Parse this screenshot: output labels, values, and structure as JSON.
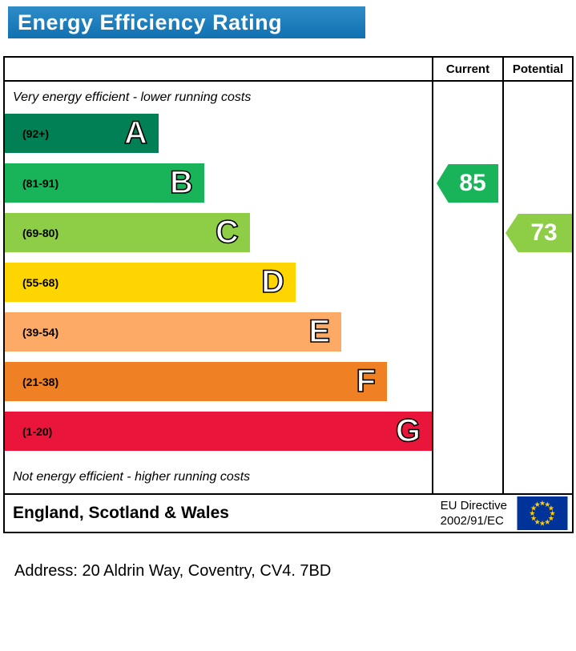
{
  "title": "Energy Efficiency Rating",
  "colors": {
    "title_bar_top": "#2e8cc8",
    "title_bar_bottom": "#1171b1"
  },
  "table": {
    "current_header": "Current",
    "potential_header": "Potential"
  },
  "notes": {
    "top": "Very energy efficient - lower running costs",
    "bottom": "Not energy efficient - higher running costs"
  },
  "chart_data": {
    "type": "bar",
    "title": "Energy Efficiency Rating",
    "orientation": "horizontal",
    "bands": [
      {
        "letter": "A",
        "range": "(92+)",
        "color": "#008054",
        "width_pct": 36.0
      },
      {
        "letter": "B",
        "range": "(81-91)",
        "color": "#19b459",
        "width_pct": 46.7
      },
      {
        "letter": "C",
        "range": "(69-80)",
        "color": "#8dce46",
        "width_pct": 57.4
      },
      {
        "letter": "D",
        "range": "(55-68)",
        "color": "#ffd500",
        "width_pct": 68.1
      },
      {
        "letter": "E",
        "range": "(39-54)",
        "color": "#fcaa65",
        "width_pct": 78.8
      },
      {
        "letter": "F",
        "range": "(21-38)",
        "color": "#ef8023",
        "width_pct": 89.5
      },
      {
        "letter": "G",
        "range": "(1-20)",
        "color": "#e9153b",
        "width_pct": 100.0
      }
    ],
    "current": {
      "label": "Current",
      "value": 85,
      "band": "B",
      "color": "#19b459"
    },
    "potential": {
      "label": "Potential",
      "value": 73,
      "band": "C",
      "color": "#8dce46"
    }
  },
  "footer": {
    "region": "England, Scotland & Wales",
    "directive_line1": "EU Directive",
    "directive_line2": "2002/91/EC",
    "eu_flag": {
      "background": "#003399",
      "star_color": "#ffcc00"
    }
  },
  "address": "Address: 20 Aldrin Way, Coventry, CV4. 7BD"
}
